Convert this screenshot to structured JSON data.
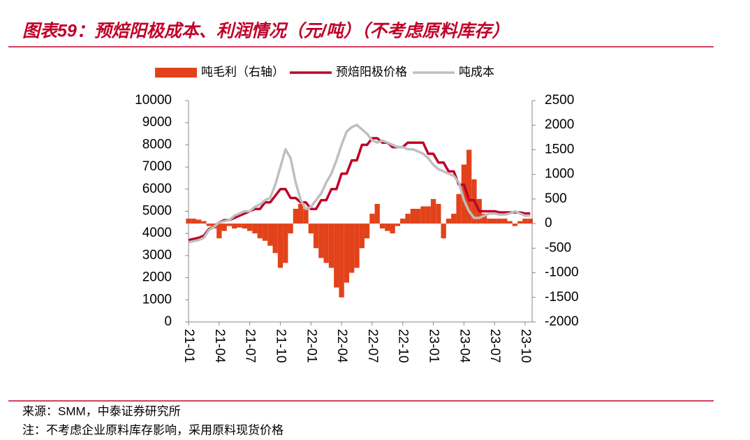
{
  "chart_data": {
    "type": "combo",
    "title": "图表59：预焙阳极成本、利润情况（元/吨）（不考虑原料库存）",
    "source": "来源：SMM，中泰证券研究所",
    "note": "注：不考虑企业原料库存影响，采用原料现货价格",
    "categories": [
      "21-01",
      null,
      null,
      null,
      null,
      null,
      "21-04",
      null,
      null,
      null,
      null,
      null,
      "21-07",
      null,
      null,
      null,
      null,
      null,
      "21-10",
      null,
      null,
      null,
      null,
      null,
      "22-01",
      null,
      null,
      null,
      null,
      null,
      "22-04",
      null,
      null,
      null,
      null,
      null,
      "22-07",
      null,
      null,
      null,
      null,
      null,
      "22-10",
      null,
      null,
      null,
      null,
      null,
      "23-01",
      null,
      null,
      null,
      null,
      null,
      "23-04",
      null,
      null,
      null,
      null,
      null,
      "23-07",
      null,
      null,
      null,
      null,
      null,
      "23-10",
      null
    ],
    "series": [
      {
        "name": "吨毛利（右轴）",
        "type": "bar",
        "axis": "y2",
        "color": "#e2421a",
        "values": [
          100,
          100,
          80,
          50,
          -50,
          -100,
          -300,
          -150,
          -50,
          -100,
          -80,
          -100,
          -150,
          -200,
          -300,
          -350,
          -450,
          -600,
          -900,
          -800,
          -200,
          300,
          400,
          300,
          -200,
          -500,
          -700,
          -800,
          -900,
          -1300,
          -1500,
          -1200,
          -1000,
          -900,
          -500,
          -300,
          200,
          400,
          -100,
          -150,
          -200,
          -50,
          100,
          200,
          300,
          300,
          350,
          350,
          500,
          400,
          -300,
          100,
          200,
          600,
          1200,
          1500,
          900,
          500,
          200,
          100,
          100,
          100,
          100,
          50,
          -50,
          50,
          100,
          100
        ]
      },
      {
        "name": "预焙阳极价格",
        "type": "line",
        "color": "#c00028",
        "values": [
          3700,
          3750,
          3800,
          3900,
          4200,
          4300,
          4500,
          4600,
          4600,
          4700,
          4800,
          4900,
          5000,
          5100,
          5100,
          5400,
          5400,
          5700,
          6000,
          6000,
          5600,
          5600,
          5400,
          5400,
          5100,
          5100,
          5500,
          5500,
          6000,
          6000,
          6700,
          6700,
          7300,
          7300,
          8000,
          8000,
          8300,
          8300,
          8100,
          8100,
          7900,
          7900,
          7900,
          8100,
          8100,
          8100,
          8100,
          7600,
          7600,
          7200,
          7200,
          6800,
          6800,
          6200,
          6200,
          5500,
          5500,
          5000,
          5000,
          5000,
          5000,
          4950,
          4950,
          4950,
          4950,
          4950,
          4900,
          4900
        ]
      },
      {
        "name": "吨成本",
        "type": "line",
        "color": "#bfbfbf",
        "values": [
          3600,
          3650,
          3700,
          3800,
          4150,
          4300,
          4500,
          4550,
          4600,
          4800,
          4900,
          5000,
          5000,
          5200,
          5300,
          5500,
          5600,
          6200,
          7000,
          7800,
          7400,
          6300,
          5500,
          5100,
          5200,
          5500,
          5800,
          6300,
          6700,
          7300,
          8000,
          8600,
          8800,
          8900,
          8700,
          8500,
          8200,
          8100,
          8200,
          8100,
          8000,
          7900,
          7900,
          7800,
          7800,
          7700,
          7600,
          7400,
          7100,
          6900,
          6800,
          6700,
          6600,
          6300,
          5500,
          5000,
          4700,
          4700,
          4800,
          4900,
          4900,
          4850,
          4850,
          4900,
          5000,
          4900,
          4800,
          4800
        ]
      }
    ],
    "ylim": [
      0,
      10000
    ],
    "yticks": [
      0,
      1000,
      2000,
      3000,
      4000,
      5000,
      6000,
      7000,
      8000,
      9000,
      10000
    ],
    "y2lim": [
      -2000,
      2500
    ],
    "y2ticks": [
      -2000,
      -1500,
      -1000,
      -500,
      0,
      500,
      1000,
      1500,
      2000,
      2500
    ],
    "legend": "top"
  }
}
